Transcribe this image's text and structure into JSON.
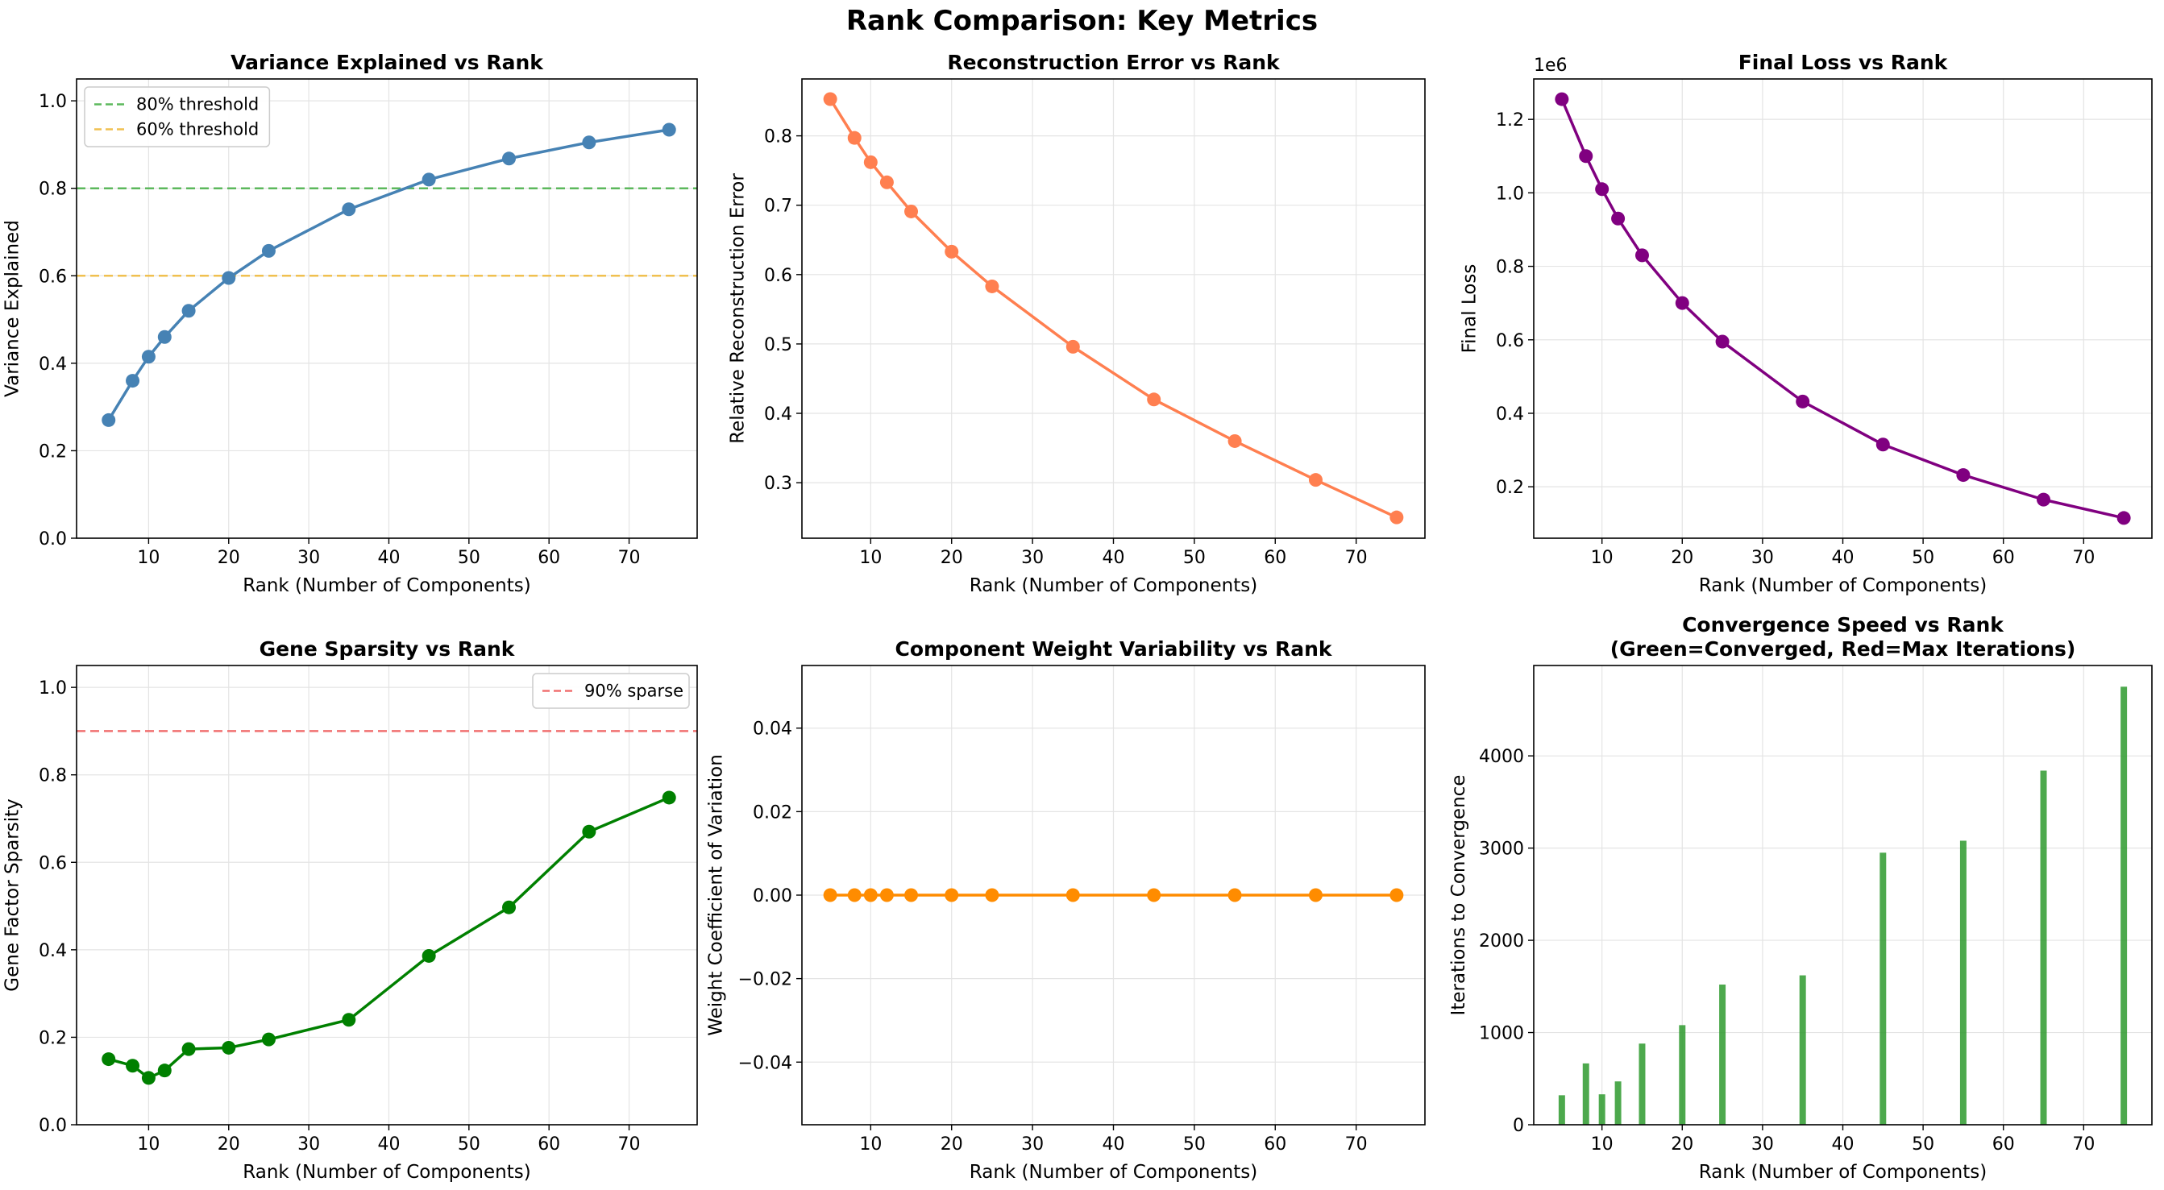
{
  "suptitle": "Rank Comparison: Key Metrics",
  "chart_data": [
    {
      "id": "variance",
      "type": "line",
      "title": [
        "Variance Explained vs Rank"
      ],
      "xlabel": "Rank (Number of Components)",
      "ylabel": "Variance Explained",
      "x": [
        5,
        8,
        10,
        12,
        15,
        20,
        25,
        35,
        45,
        55,
        65,
        75
      ],
      "y": [
        0.27,
        0.36,
        0.415,
        0.46,
        0.52,
        0.595,
        0.657,
        0.752,
        0.82,
        0.868,
        0.905,
        0.934
      ],
      "color": "#4682b4",
      "xlim": [
        1,
        78.5
      ],
      "ylim": [
        0,
        1.05
      ],
      "xticks": [
        10,
        20,
        30,
        40,
        50,
        60,
        70
      ],
      "yticks": [
        0.0,
        0.2,
        0.4,
        0.6,
        0.8,
        1.0
      ],
      "ytick_labels": [
        "0.0",
        "0.2",
        "0.4",
        "0.6",
        "0.8",
        "1.0"
      ],
      "grid": true,
      "hlines": [
        {
          "y": 0.8,
          "color": "#5cb85c",
          "label": "80% threshold"
        },
        {
          "y": 0.6,
          "color": "#f0c050",
          "label": "60% threshold"
        }
      ],
      "legend_loc": "upper-left"
    },
    {
      "id": "recon",
      "type": "line",
      "title": [
        "Reconstruction Error vs Rank"
      ],
      "xlabel": "Rank (Number of Components)",
      "ylabel": "Relative Reconstruction Error",
      "x": [
        5,
        8,
        10,
        12,
        15,
        20,
        25,
        35,
        45,
        55,
        65,
        75
      ],
      "y": [
        0.853,
        0.797,
        0.762,
        0.733,
        0.691,
        0.633,
        0.583,
        0.496,
        0.42,
        0.36,
        0.304,
        0.25
      ],
      "color": "#ff7f50",
      "xlim": [
        1.5,
        78.5
      ],
      "ylim": [
        0.22,
        0.882
      ],
      "xticks": [
        10,
        20,
        30,
        40,
        50,
        60,
        70
      ],
      "yticks": [
        0.3,
        0.4,
        0.5,
        0.6,
        0.7,
        0.8
      ],
      "ytick_labels": [
        "0.3",
        "0.4",
        "0.5",
        "0.6",
        "0.7",
        "0.8"
      ],
      "grid": true
    },
    {
      "id": "loss",
      "type": "line",
      "title": [
        "Final Loss vs Rank"
      ],
      "xlabel": "Rank (Number of Components)",
      "ylabel": "Final Loss",
      "offset_text": "1e6",
      "x": [
        5,
        8,
        10,
        12,
        15,
        20,
        25,
        35,
        45,
        55,
        65,
        75
      ],
      "y": [
        1.255,
        1.1,
        1.01,
        0.93,
        0.83,
        0.7,
        0.595,
        0.432,
        0.315,
        0.232,
        0.165,
        0.115
      ],
      "color": "#800080",
      "xlim": [
        1.5,
        78.5
      ],
      "ylim": [
        0.06,
        1.31
      ],
      "xticks": [
        10,
        20,
        30,
        40,
        50,
        60,
        70
      ],
      "yticks": [
        0.2,
        0.4,
        0.6,
        0.8,
        1.0,
        1.2
      ],
      "ytick_labels": [
        "0.2",
        "0.4",
        "0.6",
        "0.8",
        "1.0",
        "1.2"
      ],
      "grid": true
    },
    {
      "id": "sparsity",
      "type": "line",
      "title": [
        "Gene Sparsity vs Rank"
      ],
      "xlabel": "Rank (Number of Components)",
      "ylabel": "Gene Factor Sparsity",
      "x": [
        5,
        8,
        10,
        12,
        15,
        20,
        25,
        35,
        45,
        55,
        65,
        75
      ],
      "y": [
        0.15,
        0.135,
        0.107,
        0.124,
        0.173,
        0.176,
        0.195,
        0.24,
        0.386,
        0.497,
        0.67,
        0.748
      ],
      "color": "#008000",
      "xlim": [
        1,
        78.5
      ],
      "ylim": [
        0,
        1.05
      ],
      "xticks": [
        10,
        20,
        30,
        40,
        50,
        60,
        70
      ],
      "yticks": [
        0.0,
        0.2,
        0.4,
        0.6,
        0.8,
        1.0
      ],
      "ytick_labels": [
        "0.0",
        "0.2",
        "0.4",
        "0.6",
        "0.8",
        "1.0"
      ],
      "grid": true,
      "hlines": [
        {
          "y": 0.9,
          "color": "#f07070",
          "label": "90% sparse"
        }
      ],
      "legend_loc": "upper-right"
    },
    {
      "id": "weightcv",
      "type": "line",
      "title": [
        "Component Weight Variability vs Rank"
      ],
      "xlabel": "Rank (Number of Components)",
      "ylabel": "Weight Coefficient of Variation",
      "x": [
        5,
        8,
        10,
        12,
        15,
        20,
        25,
        35,
        45,
        55,
        65,
        75
      ],
      "y": [
        0,
        0,
        0,
        0,
        0,
        0,
        0,
        0,
        0,
        0,
        0,
        0
      ],
      "color": "#ff8c00",
      "xlim": [
        1.5,
        78.5
      ],
      "ylim": [
        -0.055,
        0.055
      ],
      "xticks": [
        10,
        20,
        30,
        40,
        50,
        60,
        70
      ],
      "yticks": [
        -0.04,
        -0.02,
        0.0,
        0.02,
        0.04
      ],
      "ytick_labels": [
        "−0.04",
        "−0.02",
        "0.00",
        "0.02",
        "0.04"
      ],
      "grid": true
    },
    {
      "id": "convergence",
      "type": "bar",
      "title": [
        "Convergence Speed vs Rank",
        "(Green=Converged, Red=Max Iterations)"
      ],
      "xlabel": "Rank (Number of Components)",
      "ylabel": "Iterations to Convergence",
      "x": [
        5,
        8,
        10,
        12,
        15,
        20,
        25,
        35,
        45,
        55,
        65,
        75
      ],
      "y": [
        320,
        665,
        330,
        470,
        880,
        1080,
        1520,
        1620,
        2950,
        3080,
        3840,
        4750
      ],
      "color": "#2e9a2e",
      "bar_width": 0.8,
      "xlim": [
        1.5,
        78.5
      ],
      "ylim": [
        0,
        4980
      ],
      "xticks": [
        10,
        20,
        30,
        40,
        50,
        60,
        70
      ],
      "yticks": [
        0,
        1000,
        2000,
        3000,
        4000
      ],
      "ytick_labels": [
        "0",
        "1000",
        "2000",
        "3000",
        "4000"
      ],
      "grid": true
    }
  ]
}
